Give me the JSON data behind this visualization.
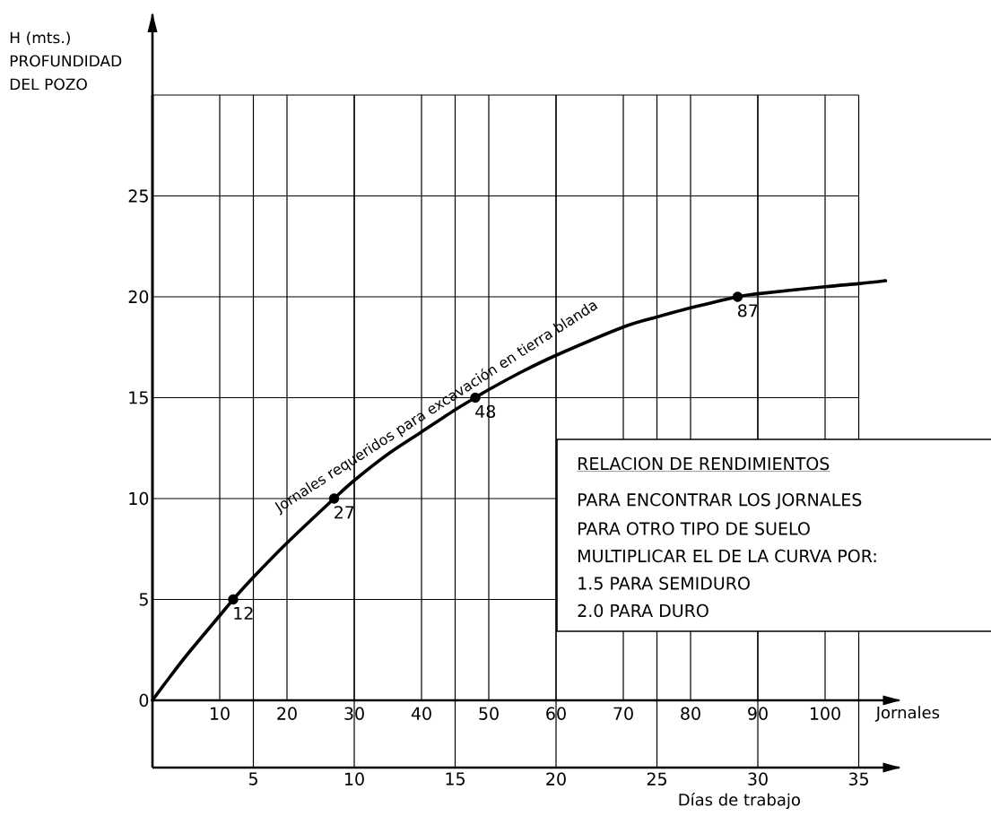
{
  "chart_data": {
    "type": "line",
    "xlabel": "Jornales",
    "ylabel": "H (mts.) PROFUNDIDAD DEL POZO",
    "x2label": "Días de trabajo",
    "xlim": [
      0,
      111
    ],
    "xticks": [
      10,
      20,
      30,
      40,
      50,
      60,
      70,
      80,
      90,
      100
    ],
    "x2lim": [
      0,
      37
    ],
    "x2ticks": [
      5,
      10,
      15,
      20,
      25,
      30,
      35
    ],
    "ylim": [
      0,
      34
    ],
    "yticks": [
      0,
      5,
      10,
      15,
      20,
      25,
      {
        "value": 30,
        "label": null
      }
    ],
    "grid": true,
    "series": [
      {
        "name": "Jornales requeridos para excavación en tierra blanda",
        "color": "#000000",
        "marker": "none",
        "x": [
          0,
          2,
          5,
          10,
          12,
          15,
          20,
          27,
          30,
          35,
          40,
          45,
          48,
          50,
          55,
          60,
          70,
          75,
          80,
          87,
          90,
          100,
          105,
          109
        ],
        "values": [
          0,
          0.9,
          2.2,
          4.2,
          5,
          6.1,
          7.8,
          10,
          10.9,
          12.2,
          13.3,
          14.4,
          15,
          15.4,
          16.3,
          17.1,
          18.5,
          19.0,
          19.45,
          20,
          20.15,
          20.5,
          20.65,
          20.8
        ]
      },
      {
        "type": "scatter",
        "color": "#000000",
        "marker": "circle",
        "x": [
          12,
          27,
          48,
          87
        ],
        "values": [
          5,
          10,
          15,
          20
        ]
      }
    ],
    "annotations": [
      {
        "text": "12",
        "x": 12,
        "y": 5
      },
      {
        "text": "27",
        "x": 27,
        "y": 10
      },
      {
        "text": "48",
        "x": 48,
        "y": 15
      },
      {
        "text": "87",
        "x": 87,
        "y": 20
      },
      "RELACION DE RENDIMIENTOS",
      "PARA ENCONTRAR LOS JORNALES",
      "PARA OTRO TIPO DE SUELO",
      "MULTIPLICAR EL DE LA CURVA POR:",
      "1.5 PARA SEMIDURO",
      "2.0 PARA DURO"
    ]
  }
}
